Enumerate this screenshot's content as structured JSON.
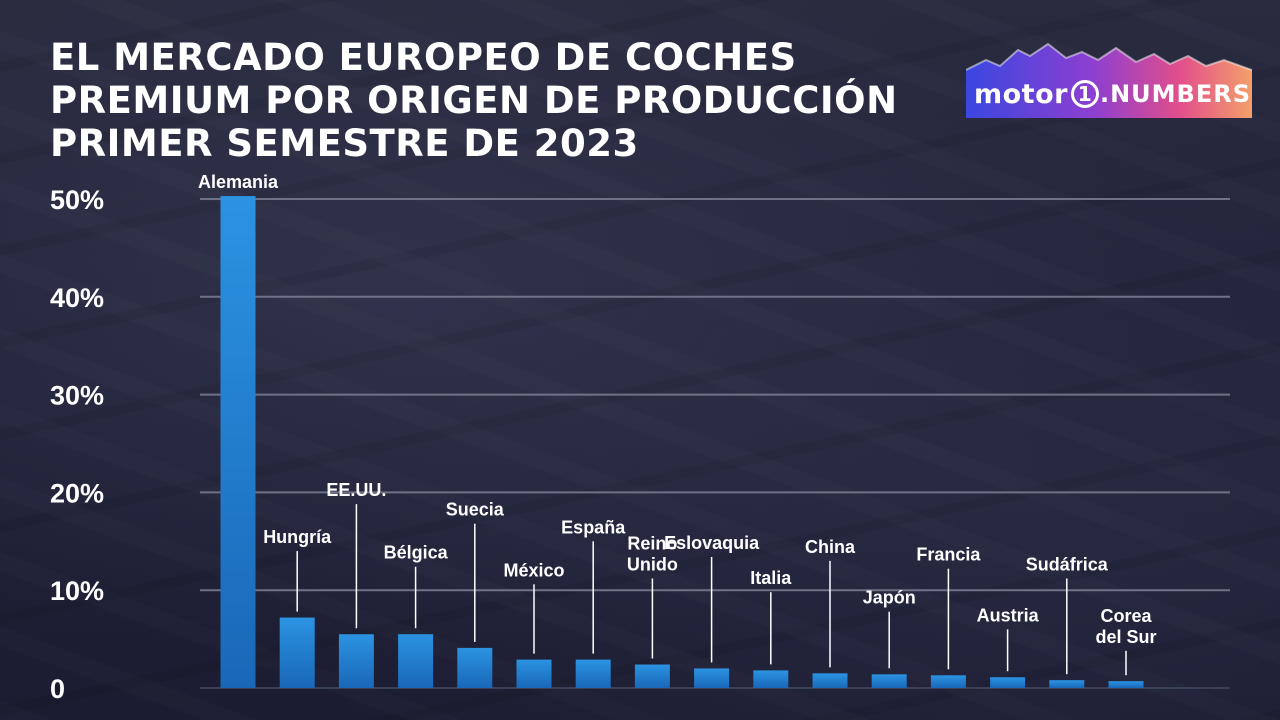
{
  "header": {
    "title_lines": [
      "EL MERCADO EUROPEO DE COCHES",
      "PREMIUM POR ORIGEN DE PRODUCCIÓN",
      "PRIMER SEMESTRE DE 2023"
    ]
  },
  "logo": {
    "word": "motor",
    "ring": "1",
    "suffix": ".NUMBERS"
  },
  "colors": {
    "bar": "#2b93e2",
    "bar_dark": "#1a67b8",
    "grid": "#6f7287",
    "text": "#ffffff"
  },
  "chart_data": {
    "type": "bar",
    "title": "EL MERCADO EUROPEO DE COCHES PREMIUM POR ORIGEN DE PRODUCCIÓN PRIMER SEMESTRE DE 2023",
    "xlabel": "",
    "ylabel": "",
    "ylim": [
      0,
      50
    ],
    "yticks": [
      0,
      10,
      20,
      30,
      40,
      50
    ],
    "ytick_labels": [
      "0",
      "10%",
      "20%",
      "30%",
      "40%",
      "50%"
    ],
    "grid": true,
    "categories": [
      [
        "Alemania"
      ],
      [
        "Hungría"
      ],
      [
        "EE.UU."
      ],
      [
        "Bélgica"
      ],
      [
        "Suecia"
      ],
      [
        "México"
      ],
      [
        "España"
      ],
      [
        "Reino",
        "Unido"
      ],
      [
        "Eslovaquia"
      ],
      [
        "Italia"
      ],
      [
        "China"
      ],
      [
        "Japón"
      ],
      [
        "Francia"
      ],
      [
        "Austria"
      ],
      [
        "Sudáfrica"
      ],
      [
        "Corea",
        "del Sur"
      ]
    ],
    "values": [
      50.3,
      7.2,
      5.5,
      5.5,
      4.1,
      2.9,
      2.9,
      2.4,
      2.0,
      1.8,
      1.5,
      1.4,
      1.3,
      1.1,
      0.8,
      0.7
    ],
    "label_levels": [
      null,
      14.0,
      18.8,
      12.4,
      16.8,
      10.6,
      15.0,
      11.2,
      13.4,
      9.8,
      13.0,
      7.8,
      12.2,
      6.0,
      11.2,
      3.8
    ]
  }
}
